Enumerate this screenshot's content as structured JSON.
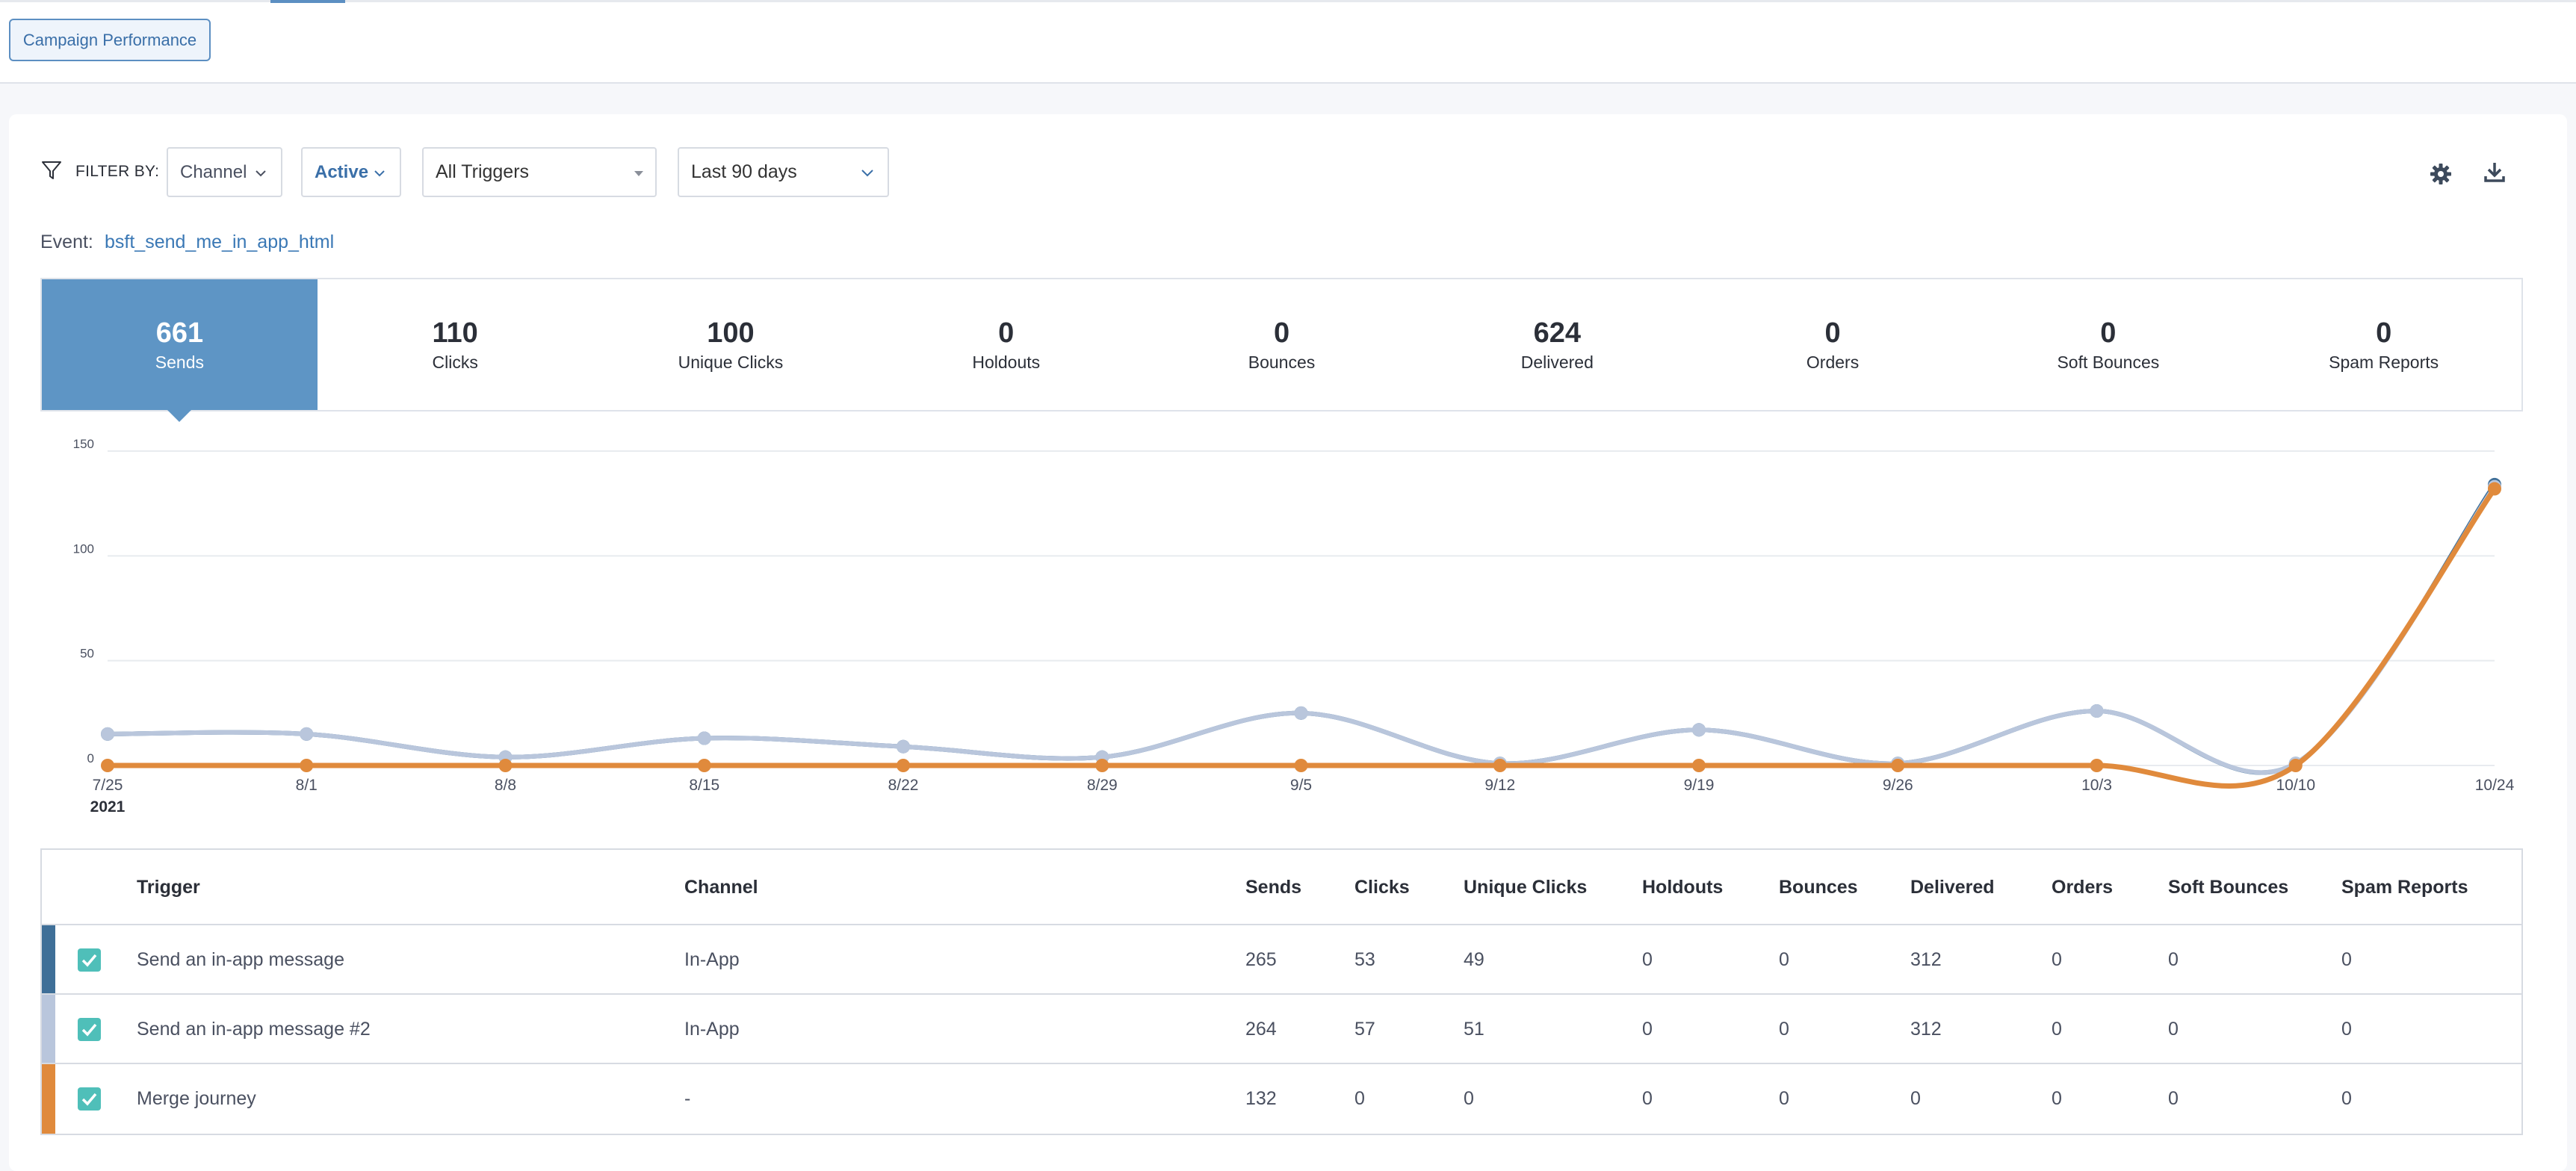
{
  "header": {
    "report_button": "Campaign Performance"
  },
  "filters": {
    "label": "FILTER BY:",
    "channel": "Channel",
    "status": "Active",
    "triggers": "All Triggers",
    "date_range": "Last 90 days"
  },
  "event": {
    "label": "Event:",
    "value": "bsft_send_me_in_app_html"
  },
  "metrics": [
    {
      "value": "661",
      "label": "Sends"
    },
    {
      "value": "110",
      "label": "Clicks"
    },
    {
      "value": "100",
      "label": "Unique Clicks"
    },
    {
      "value": "0",
      "label": "Holdouts"
    },
    {
      "value": "0",
      "label": "Bounces"
    },
    {
      "value": "624",
      "label": "Delivered"
    },
    {
      "value": "0",
      "label": "Orders"
    },
    {
      "value": "0",
      "label": "Soft Bounces"
    },
    {
      "value": "0",
      "label": "Spam Reports"
    }
  ],
  "colors": {
    "accent": "#5e95c5",
    "series_dark": "#3f6f98",
    "series_light": "#b9c6dc",
    "series_orange": "#e08a3c",
    "checkbox": "#4fbfb9"
  },
  "chart_data": {
    "type": "line",
    "categories": [
      "7/25",
      "8/1",
      "8/8",
      "8/15",
      "8/22",
      "8/29",
      "9/5",
      "9/12",
      "9/19",
      "9/26",
      "10/3",
      "10/10",
      "10/24"
    ],
    "year_label": "2021",
    "yticks": [
      "0",
      "50",
      "100",
      "150"
    ],
    "ylim": [
      0,
      150
    ],
    "grid": true,
    "series": [
      {
        "name": "Send an in-app message",
        "color": "#3f6f98",
        "values": [
          15,
          15,
          4,
          13,
          9,
          4,
          25,
          1,
          17,
          1,
          26,
          1,
          134
        ]
      },
      {
        "name": "Send an in-app message #2",
        "color": "#b9c6dc",
        "values": [
          15,
          15,
          4,
          13,
          9,
          4,
          25,
          1,
          17,
          1,
          26,
          1,
          133
        ]
      },
      {
        "name": "Merge journey",
        "color": "#e08a3c",
        "values": [
          0,
          0,
          0,
          0,
          0,
          0,
          0,
          0,
          0,
          0,
          0,
          0,
          132
        ]
      }
    ]
  },
  "table": {
    "headers": {
      "trigger": "Trigger",
      "channel": "Channel",
      "sends": "Sends",
      "clicks": "Clicks",
      "unique_clicks": "Unique Clicks",
      "holdouts": "Holdouts",
      "bounces": "Bounces",
      "delivered": "Delivered",
      "orders": "Orders",
      "soft_bounces": "Soft Bounces",
      "spam_reports": "Spam Reports"
    },
    "rows": [
      {
        "trigger": "Send an in-app message",
        "channel": "In-App",
        "sends": "265",
        "clicks": "53",
        "unique_clicks": "49",
        "holdouts": "0",
        "bounces": "0",
        "delivered": "312",
        "orders": "0",
        "soft_bounces": "0",
        "spam_reports": "0",
        "color": "#3f6f98"
      },
      {
        "trigger": "Send an in-app message #2",
        "channel": "In-App",
        "sends": "264",
        "clicks": "57",
        "unique_clicks": "51",
        "holdouts": "0",
        "bounces": "0",
        "delivered": "312",
        "orders": "0",
        "soft_bounces": "0",
        "spam_reports": "0",
        "color": "#b9c6dc"
      },
      {
        "trigger": "Merge journey",
        "channel": "-",
        "sends": "132",
        "clicks": "0",
        "unique_clicks": "0",
        "holdouts": "0",
        "bounces": "0",
        "delivered": "0",
        "orders": "0",
        "soft_bounces": "0",
        "spam_reports": "0",
        "color": "#e08a3c"
      }
    ]
  }
}
